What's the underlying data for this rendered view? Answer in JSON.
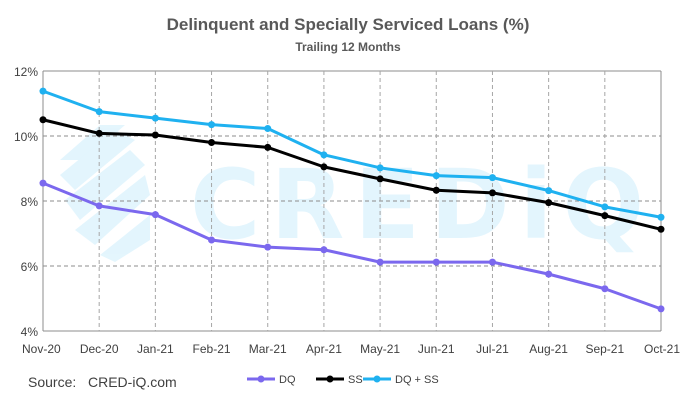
{
  "chart_data": {
    "type": "line",
    "title": "Delinquent and Specially Serviced Loans (%)",
    "subtitle": "Trailing 12 Months",
    "xlabel": "",
    "ylabel": "",
    "categories": [
      "Nov-20",
      "Dec-20",
      "Jan-21",
      "Feb-21",
      "Mar-21",
      "Apr-21",
      "May-21",
      "Jun-21",
      "Jul-21",
      "Aug-21",
      "Sep-21",
      "Oct-21"
    ],
    "ylim": [
      4,
      12
    ],
    "yticks": [
      4,
      6,
      8,
      10,
      12
    ],
    "ytick_labels": [
      "4%",
      "6%",
      "8%",
      "10%",
      "12%"
    ],
    "grid": true,
    "legend_position": "bottom-center",
    "series": [
      {
        "name": "DQ",
        "color": "#7b68ee",
        "values": [
          8.55,
          7.85,
          7.58,
          6.8,
          6.58,
          6.5,
          6.12,
          6.12,
          6.12,
          5.75,
          5.3,
          4.68
        ]
      },
      {
        "name": "SS",
        "color": "#000000",
        "values": [
          10.5,
          10.08,
          10.03,
          9.8,
          9.65,
          9.05,
          8.68,
          8.33,
          8.25,
          7.95,
          7.55,
          7.13
        ]
      },
      {
        "name": "DQ + SS",
        "color": "#1fb1f0",
        "values": [
          11.38,
          10.75,
          10.55,
          10.35,
          10.23,
          9.42,
          9.02,
          8.78,
          8.72,
          8.32,
          7.82,
          7.5
        ]
      }
    ],
    "source_label": "Source:",
    "source_value": "CRED-iQ.com",
    "watermark": "CREDiQ"
  }
}
